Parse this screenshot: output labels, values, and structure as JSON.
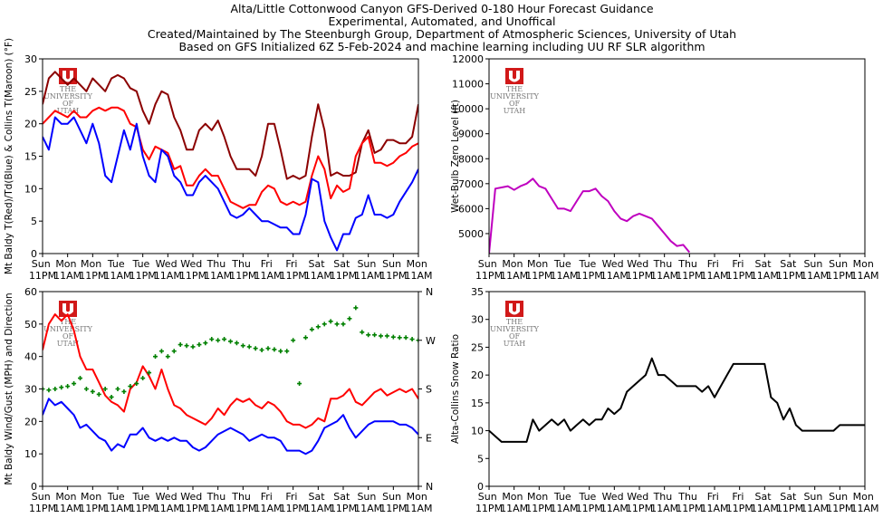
{
  "header": {
    "lines": [
      "Alta/Little Cottonwood Canyon GFS-Derived 0-180 Hour Forecast Guidance",
      "Experimental, Automated, and Unoffical",
      "Created/Maintained by The Steenburgh Group, Department of Atmospheric Sciences, University of Utah",
      "Based on GFS Initialized 6Z 5-Feb-2024 and machine learning including UU RF SLR algorithm"
    ],
    "logo": [
      "THE",
      "UNIVERSITY",
      "OF",
      "UTAH"
    ]
  },
  "chart_data": [
    {
      "type": "line",
      "ylabel": "Mt Baldy T(Red)/Td(Blue) & Collins T(Maroon) (°F)",
      "xlim": [
        0,
        180
      ],
      "ylim": [
        0,
        30
      ],
      "yticks": [
        0,
        5,
        10,
        15,
        20,
        25,
        30
      ],
      "xticks": [
        {
          "value": 0,
          "label": "Sun 11PM"
        },
        {
          "value": 12,
          "label": "Mon 11AM"
        },
        {
          "value": 24,
          "label": "Mon 11PM"
        },
        {
          "value": 36,
          "label": "Tue 11AM"
        },
        {
          "value": 48,
          "label": "Tue 11PM"
        },
        {
          "value": 60,
          "label": "Wed 11AM"
        },
        {
          "value": 72,
          "label": "Wed 11PM"
        },
        {
          "value": 84,
          "label": "Thu 11AM"
        },
        {
          "value": 96,
          "label": "Thu 11PM"
        },
        {
          "value": 108,
          "label": "Fri 11AM"
        },
        {
          "value": 120,
          "label": "Fri 11PM"
        },
        {
          "value": 132,
          "label": "Sat 11AM"
        },
        {
          "value": 144,
          "label": "Sat 11PM"
        },
        {
          "value": 156,
          "label": "Sun 11AM"
        },
        {
          "value": 168,
          "label": "Sun 11PM"
        },
        {
          "value": 180,
          "label": "Mon 11AM"
        }
      ],
      "x": [
        0,
        3,
        6,
        9,
        12,
        15,
        18,
        21,
        24,
        27,
        30,
        33,
        36,
        39,
        42,
        45,
        48,
        51,
        54,
        57,
        60,
        63,
        66,
        69,
        72,
        75,
        78,
        81,
        84,
        87,
        90,
        93,
        96,
        99,
        102,
        105,
        108,
        111,
        114,
        117,
        120,
        123,
        126,
        129,
        132,
        135,
        138,
        141,
        144,
        147,
        150,
        153,
        156,
        159,
        162,
        165,
        168,
        171,
        174,
        177,
        180
      ],
      "series": [
        {
          "color": "#8b0000",
          "values": [
            23,
            27,
            28,
            27,
            26,
            27,
            26,
            25,
            27,
            26,
            25,
            27,
            27.5,
            27,
            25.5,
            25,
            22,
            20,
            23,
            25,
            24.5,
            21,
            19,
            16,
            16,
            19,
            20,
            19,
            20.5,
            18,
            15,
            13,
            13,
            13,
            12,
            15,
            20,
            20,
            16,
            11.5,
            12,
            11.5,
            12,
            18,
            23,
            19,
            12,
            12.5,
            12,
            12,
            12.5,
            17,
            19,
            15.5,
            16,
            17.5,
            17.5,
            17,
            17,
            18,
            23
          ]
        },
        {
          "color": "#ff0000",
          "values": [
            20,
            21,
            22,
            21.5,
            21,
            22,
            21,
            21,
            22,
            22.5,
            22,
            22.5,
            22.5,
            22,
            20,
            19.5,
            16,
            14.5,
            16.5,
            16,
            15.5,
            13,
            13.5,
            10.5,
            10.5,
            12,
            13,
            12,
            12,
            10,
            8,
            7.5,
            7,
            7.5,
            7.5,
            9.5,
            10.5,
            10,
            8,
            7.5,
            8,
            7.5,
            8,
            12,
            15,
            13,
            8.5,
            10.5,
            9.5,
            10,
            15,
            17,
            18,
            14,
            14,
            13.5,
            14,
            15,
            15.5,
            16.5,
            17
          ]
        },
        {
          "color": "#0000ff",
          "values": [
            18,
            16,
            21,
            20,
            20,
            21,
            19,
            17,
            20,
            17,
            12,
            11,
            15,
            19,
            16,
            20,
            15,
            12,
            11,
            16,
            15,
            12,
            11,
            9,
            9,
            11,
            12,
            11,
            10,
            8,
            6,
            5.5,
            6,
            7,
            6,
            5,
            5,
            4.5,
            4,
            4,
            3,
            3,
            6,
            11.5,
            11,
            5,
            2.5,
            0.5,
            3,
            3,
            5.5,
            6,
            9,
            6,
            6,
            5.5,
            6,
            8,
            9.5,
            11,
            13
          ]
        }
      ]
    },
    {
      "type": "line",
      "ylabel": "Wet-Bulb Zero Level (ft)",
      "xlim": [
        0,
        180
      ],
      "ylim": [
        4200,
        12000
      ],
      "yticks": [
        5000,
        6000,
        7000,
        8000,
        9000,
        10000,
        11000,
        12000
      ],
      "xticks": [
        {
          "value": 0,
          "label": "Sun 11PM"
        },
        {
          "value": 12,
          "label": "Mon 11AM"
        },
        {
          "value": 24,
          "label": "Mon 11PM"
        },
        {
          "value": 36,
          "label": "Tue 11AM"
        },
        {
          "value": 48,
          "label": "Tue 11PM"
        },
        {
          "value": 60,
          "label": "Wed 11AM"
        },
        {
          "value": 72,
          "label": "Wed 11PM"
        },
        {
          "value": 84,
          "label": "Thu 11AM"
        },
        {
          "value": 96,
          "label": "Thu 11PM"
        },
        {
          "value": 108,
          "label": "Fri 11AM"
        },
        {
          "value": 120,
          "label": "Fri 11PM"
        },
        {
          "value": 132,
          "label": "Sat 11AM"
        },
        {
          "value": 144,
          "label": "Sat 11PM"
        },
        {
          "value": 156,
          "label": "Sun 11AM"
        },
        {
          "value": 168,
          "label": "Sun 11PM"
        },
        {
          "value": 180,
          "label": "Mon 11AM"
        }
      ],
      "x": [
        0,
        3,
        6,
        9,
        12,
        15,
        18,
        21,
        24,
        27,
        30,
        33,
        36,
        39,
        42,
        45,
        48,
        51,
        54,
        57,
        60,
        63,
        66,
        69,
        72,
        75,
        78,
        81,
        84,
        87,
        90,
        93,
        96
      ],
      "series": [
        {
          "color": "#bf00bf",
          "values": [
            4200,
            6800,
            6850,
            6900,
            6750,
            6900,
            7000,
            7200,
            6900,
            6800,
            6400,
            6000,
            6000,
            5900,
            6300,
            6700,
            6700,
            6800,
            6500,
            6300,
            5900,
            5600,
            5500,
            5700,
            5800,
            5700,
            5600,
            5300,
            5000,
            4700,
            4500,
            4550,
            4250
          ]
        }
      ]
    },
    {
      "type": "line",
      "ylabel": "Mt Baldy Wind/Gust (MPH) and Direction",
      "xlim": [
        0,
        180
      ],
      "ylim": [
        0,
        60
      ],
      "yticks": [
        0,
        10,
        20,
        30,
        40,
        50,
        60
      ],
      "y2lim": [
        0,
        360
      ],
      "y2ticks": [
        {
          "value": 0,
          "label": "N"
        },
        {
          "value": 90,
          "label": "E"
        },
        {
          "value": 180,
          "label": "S"
        },
        {
          "value": 270,
          "label": "W"
        },
        {
          "value": 360,
          "label": "N"
        }
      ],
      "xticks": [
        {
          "value": 0,
          "label": "Sun 11PM"
        },
        {
          "value": 12,
          "label": "Mon 11AM"
        },
        {
          "value": 24,
          "label": "Mon 11PM"
        },
        {
          "value": 36,
          "label": "Tue 11AM"
        },
        {
          "value": 48,
          "label": "Tue 11PM"
        },
        {
          "value": 60,
          "label": "Wed 11AM"
        },
        {
          "value": 72,
          "label": "Wed 11PM"
        },
        {
          "value": 84,
          "label": "Thu 11AM"
        },
        {
          "value": 96,
          "label": "Thu 11PM"
        },
        {
          "value": 108,
          "label": "Fri 11AM"
        },
        {
          "value": 120,
          "label": "Fri 11PM"
        },
        {
          "value": 132,
          "label": "Sat 11AM"
        },
        {
          "value": 144,
          "label": "Sat 11PM"
        },
        {
          "value": 156,
          "label": "Sun 11AM"
        },
        {
          "value": 168,
          "label": "Sun 11PM"
        },
        {
          "value": 180,
          "label": "Mon 11AM"
        }
      ],
      "x": [
        0,
        3,
        6,
        9,
        12,
        15,
        18,
        21,
        24,
        27,
        30,
        33,
        36,
        39,
        42,
        45,
        48,
        51,
        54,
        57,
        60,
        63,
        66,
        69,
        72,
        75,
        78,
        81,
        84,
        87,
        90,
        93,
        96,
        99,
        102,
        105,
        108,
        111,
        114,
        117,
        120,
        123,
        126,
        129,
        132,
        135,
        138,
        141,
        144,
        147,
        150,
        153,
        156,
        159,
        162,
        165,
        168,
        171,
        174,
        177,
        180
      ],
      "series": [
        {
          "color": "#ff0000",
          "values": [
            42,
            50,
            53,
            51,
            53,
            48,
            40,
            36,
            36,
            32,
            28,
            26,
            25,
            23,
            30,
            32,
            37,
            34,
            30,
            36,
            30,
            25,
            24,
            22,
            21,
            20,
            19,
            21,
            24,
            22,
            25,
            27,
            26,
            27,
            25,
            24,
            26,
            25,
            23,
            20,
            19,
            19,
            18,
            19,
            21,
            20,
            27,
            27,
            28,
            30,
            26,
            25,
            27,
            29,
            30,
            28,
            29,
            30,
            29,
            30,
            27
          ]
        },
        {
          "color": "#0000ff",
          "values": [
            22,
            27,
            25,
            26,
            24,
            22,
            18,
            19,
            17,
            15,
            14,
            11,
            13,
            12,
            16,
            16,
            18,
            15,
            14,
            15,
            14,
            15,
            14,
            14,
            12,
            11,
            12,
            14,
            16,
            17,
            18,
            17,
            16,
            14,
            15,
            16,
            15,
            15,
            14,
            11,
            11,
            11,
            10,
            11,
            14,
            18,
            19,
            20,
            22,
            18,
            15,
            17,
            19,
            20,
            20,
            20,
            20,
            19,
            19,
            18,
            16
          ]
        },
        {
          "color": "#008000",
          "axis": "y2",
          "marker": "plus",
          "values": [
            180,
            178,
            180,
            183,
            185,
            190,
            200,
            180,
            175,
            170,
            180,
            165,
            180,
            175,
            185,
            190,
            200,
            210,
            240,
            250,
            240,
            250,
            262,
            260,
            258,
            262,
            265,
            272,
            270,
            272,
            268,
            265,
            260,
            258,
            255,
            252,
            255,
            253,
            250,
            250,
            270,
            190,
            275,
            290,
            295,
            300,
            305,
            300,
            300,
            310,
            330,
            285,
            280,
            280,
            278,
            278,
            276,
            275,
            275,
            272,
            270
          ]
        }
      ]
    },
    {
      "type": "line",
      "ylabel": "Alta-Collins Snow Ratio",
      "xlim": [
        0,
        180
      ],
      "ylim": [
        0,
        35
      ],
      "yticks": [
        0,
        5,
        10,
        15,
        20,
        25,
        30,
        35
      ],
      "xticks": [
        {
          "value": 0,
          "label": "Sun 11PM"
        },
        {
          "value": 12,
          "label": "Mon 11AM"
        },
        {
          "value": 24,
          "label": "Mon 11PM"
        },
        {
          "value": 36,
          "label": "Tue 11AM"
        },
        {
          "value": 48,
          "label": "Tue 11PM"
        },
        {
          "value": 60,
          "label": "Wed 11AM"
        },
        {
          "value": 72,
          "label": "Wed 11PM"
        },
        {
          "value": 84,
          "label": "Thu 11AM"
        },
        {
          "value": 96,
          "label": "Thu 11PM"
        },
        {
          "value": 108,
          "label": "Fri 11AM"
        },
        {
          "value": 120,
          "label": "Fri 11PM"
        },
        {
          "value": 132,
          "label": "Sat 11AM"
        },
        {
          "value": 144,
          "label": "Sat 11PM"
        },
        {
          "value": 156,
          "label": "Sun 11AM"
        },
        {
          "value": 168,
          "label": "Sun 11PM"
        },
        {
          "value": 180,
          "label": "Mon 11AM"
        }
      ],
      "x": [
        0,
        3,
        6,
        9,
        12,
        15,
        18,
        21,
        24,
        27,
        30,
        33,
        36,
        39,
        42,
        45,
        48,
        51,
        54,
        57,
        60,
        63,
        66,
        69,
        72,
        75,
        78,
        81,
        84,
        87,
        90,
        93,
        96,
        99,
        102,
        105,
        108,
        111,
        114,
        117,
        120,
        123,
        126,
        129,
        132,
        135,
        138,
        141,
        144,
        147,
        150,
        153,
        156,
        159,
        162,
        165,
        168,
        171,
        174,
        177,
        180
      ],
      "series": [
        {
          "color": "#000000",
          "values": [
            10,
            9,
            8,
            8,
            8,
            8,
            8,
            12,
            10,
            11,
            12,
            11,
            12,
            10,
            11,
            12,
            11,
            12,
            12,
            14,
            13,
            14,
            17,
            18,
            19,
            20,
            23,
            20,
            20,
            19,
            18,
            18,
            18,
            18,
            17,
            18,
            16,
            18,
            20,
            22,
            22,
            22,
            22,
            22,
            22,
            16,
            15,
            12,
            14,
            11,
            10,
            10,
            10,
            10,
            10,
            10,
            11,
            11,
            11,
            11,
            11
          ]
        }
      ]
    }
  ]
}
